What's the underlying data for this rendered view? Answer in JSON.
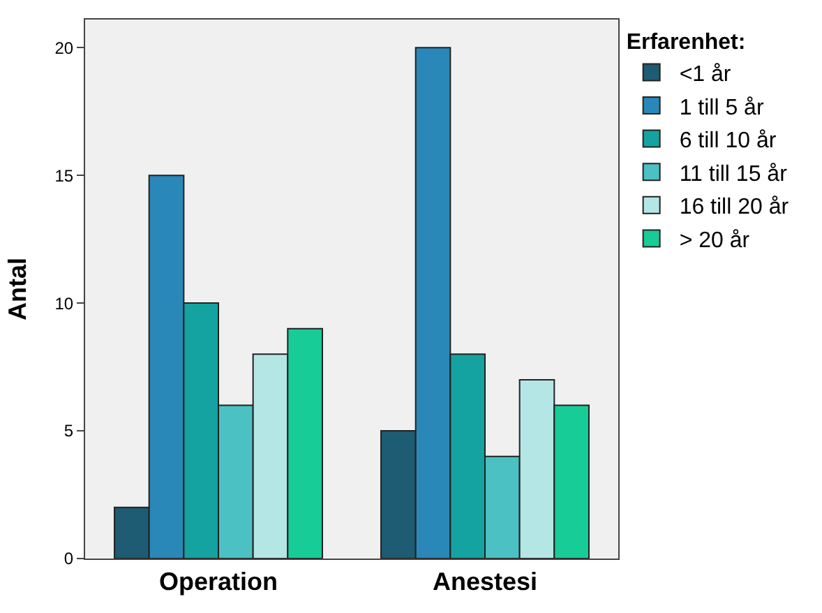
{
  "chart_data": {
    "type": "bar",
    "ylabel": "Antal",
    "legend_title": "Erfarenhet:",
    "categories": [
      "Operation",
      "Anestesi"
    ],
    "series": [
      {
        "name": "<1 år",
        "color": "#1d5c73",
        "values": [
          2,
          5
        ]
      },
      {
        "name": "1 till 5 år",
        "color": "#2a88b8",
        "values": [
          15,
          20
        ]
      },
      {
        "name": "6 till 10 år",
        "color": "#14a3a0",
        "values": [
          10,
          8
        ]
      },
      {
        "name": "11 till 15 år",
        "color": "#4cc1c3",
        "values": [
          6,
          4
        ]
      },
      {
        "name": "16 till 20 år",
        "color": "#b5e6e6",
        "values": [
          8,
          7
        ]
      },
      {
        "name": "> 20 år",
        "color": "#18cc98",
        "values": [
          9,
          6
        ]
      }
    ],
    "ylim": [
      0,
      21.1
    ],
    "yticks": [
      0,
      5,
      10,
      15,
      20
    ],
    "grid": false,
    "legend": "right"
  }
}
